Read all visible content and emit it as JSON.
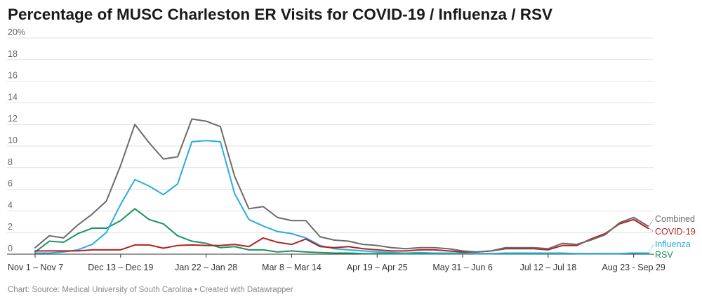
{
  "chart_data": {
    "type": "line",
    "title": "Percentage of MUSC Charleston ER Visits for COVID-19 / Influenza / RSV",
    "footer": "Chart: Source: Medical University of South Carolina • Created with Datawrapper",
    "y_unit_suffix": "%",
    "ylim": [
      0,
      20
    ],
    "yticks": [
      0,
      2,
      4,
      6,
      8,
      10,
      12,
      14,
      16,
      18,
      20
    ],
    "ytick_labels": [
      "0",
      "2",
      "4",
      "6",
      "8",
      "10",
      "12",
      "14",
      "16",
      "18",
      "20%"
    ],
    "x_tick_labels": [
      {
        "index": 0,
        "label": "Nov 1 – Nov 7"
      },
      {
        "index": 6,
        "label": "Dec 13 – Dec 19"
      },
      {
        "index": 12,
        "label": "Jan 22 – Jan 28"
      },
      {
        "index": 18,
        "label": "Mar 8 – Mar 14"
      },
      {
        "index": 24,
        "label": "Apr 19 – Apr 25"
      },
      {
        "index": 30,
        "label": "May 31 – Jun 6"
      },
      {
        "index": 36,
        "label": "Jul 12 – Jul 18"
      },
      {
        "index": 42,
        "label": "Aug 23 - Sep 29"
      }
    ],
    "n_points": 44,
    "grid": true,
    "series": [
      {
        "name": "Combined",
        "color": "#6b6b6b",
        "values": [
          0.6,
          1.7,
          1.5,
          2.7,
          3.7,
          4.9,
          8.2,
          12.0,
          10.3,
          8.8,
          9.0,
          12.5,
          12.3,
          11.8,
          7.2,
          4.2,
          4.4,
          3.4,
          3.1,
          3.1,
          1.6,
          1.3,
          1.2,
          0.9,
          0.8,
          0.6,
          0.5,
          0.6,
          0.6,
          0.5,
          0.3,
          0.2,
          0.3,
          0.6,
          0.6,
          0.6,
          0.5,
          1.0,
          0.9,
          1.3,
          1.8,
          2.9,
          3.4,
          2.6
        ]
      },
      {
        "name": "COVID-19",
        "color": "#b22222",
        "values": [
          0.3,
          0.3,
          0.3,
          0.3,
          0.4,
          0.4,
          0.4,
          0.85,
          0.85,
          0.55,
          0.8,
          0.85,
          0.8,
          0.8,
          0.9,
          0.7,
          1.5,
          1.1,
          0.9,
          1.4,
          0.7,
          0.6,
          0.7,
          0.5,
          0.4,
          0.3,
          0.3,
          0.4,
          0.4,
          0.3,
          0.2,
          0.2,
          0.3,
          0.5,
          0.5,
          0.5,
          0.4,
          0.8,
          0.8,
          1.4,
          1.9,
          2.8,
          3.2,
          2.4
        ]
      },
      {
        "name": "Influenza",
        "color": "#29abe2",
        "values": [
          0.1,
          0.1,
          0.2,
          0.4,
          0.9,
          2.0,
          4.6,
          6.9,
          6.3,
          5.5,
          6.5,
          10.4,
          10.5,
          10.4,
          5.6,
          3.2,
          2.6,
          2.1,
          1.9,
          1.5,
          0.8,
          0.5,
          0.4,
          0.3,
          0.2,
          0.15,
          0.1,
          0.15,
          0.1,
          0.1,
          0.1,
          0.05,
          0.05,
          0.1,
          0.1,
          0.1,
          0.1,
          0.1,
          0.05,
          0.05,
          0.05,
          0.05,
          0.1,
          0.1
        ]
      },
      {
        "name": "RSV",
        "color": "#1a9461",
        "values": [
          0.2,
          1.2,
          1.1,
          1.9,
          2.4,
          2.4,
          3.1,
          4.2,
          3.2,
          2.8,
          1.7,
          1.2,
          1.0,
          0.6,
          0.7,
          0.4,
          0.4,
          0.2,
          0.3,
          0.2,
          0.15,
          0.1,
          0.1,
          0.05,
          0.05,
          0.05,
          0.05,
          0.05,
          0.05,
          0.05,
          0.05,
          0.05,
          0.05,
          0.05,
          0.05,
          0.05,
          0.05,
          0.05,
          0.05,
          0.05,
          0.05,
          0.05,
          0.1,
          0.05
        ]
      }
    ]
  }
}
